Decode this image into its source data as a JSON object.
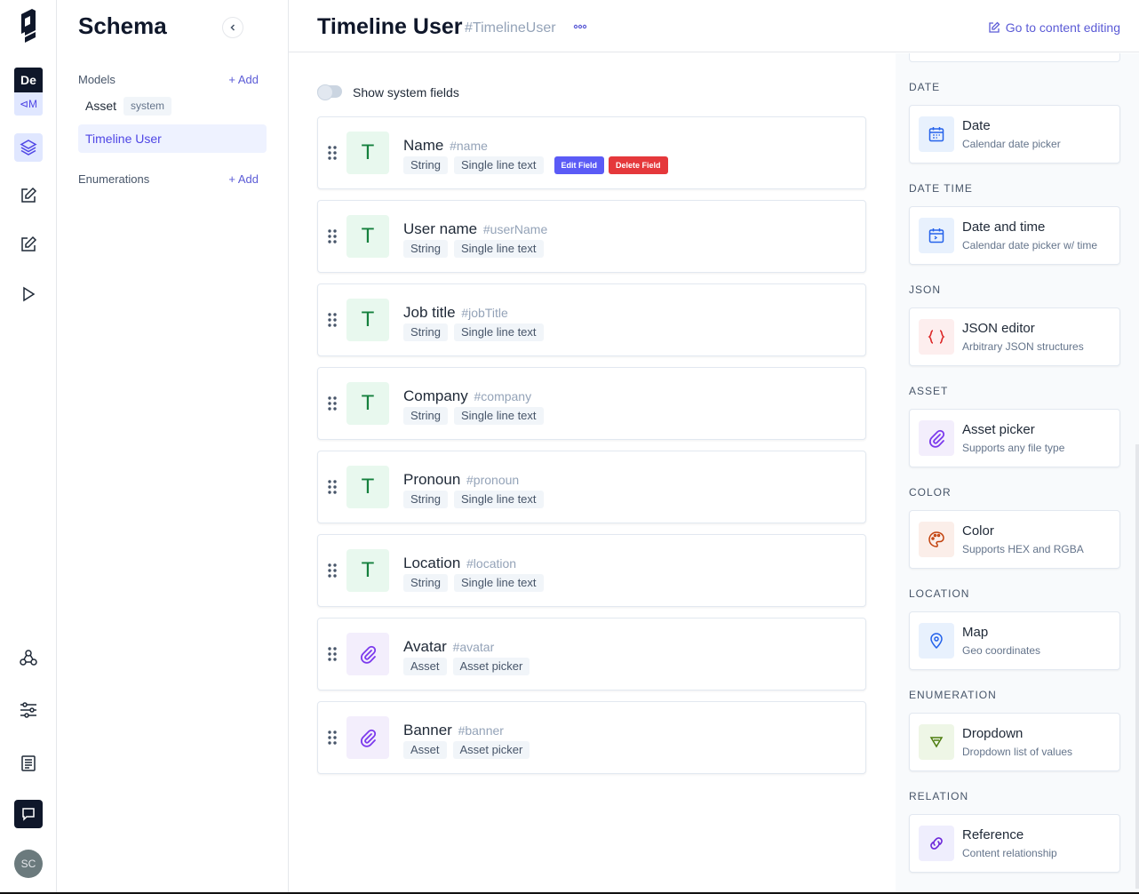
{
  "rail": {
    "project_initials": "De",
    "env_label": "⊲M",
    "user_initials": "SC"
  },
  "schema": {
    "title": "Schema",
    "models_label": "Models",
    "add_label": "+ Add",
    "asset_model": "Asset",
    "system_badge": "system",
    "active_model": "Timeline User",
    "enumerations_label": "Enumerations"
  },
  "header": {
    "title": "Timeline User",
    "api_id": "#TimelineUser",
    "go_to_content": "Go to content editing"
  },
  "main": {
    "toggle_label": "Show system fields",
    "edit_field": "Edit Field",
    "delete_field": "Delete Field",
    "fields": [
      {
        "name": "Name",
        "api_id": "#name",
        "type": "String",
        "component": "Single line text",
        "icon": "text-icon",
        "icon_glyph": "T"
      },
      {
        "name": "User name",
        "api_id": "#userName",
        "type": "String",
        "component": "Single line text",
        "icon": "text-icon",
        "icon_glyph": "T"
      },
      {
        "name": "Job title",
        "api_id": "#jobTitle",
        "type": "String",
        "component": "Single line text",
        "icon": "text-icon",
        "icon_glyph": "T"
      },
      {
        "name": "Company",
        "api_id": "#company",
        "type": "String",
        "component": "Single line text",
        "icon": "text-icon",
        "icon_glyph": "T"
      },
      {
        "name": "Pronoun",
        "api_id": "#pronoun",
        "type": "String",
        "component": "Single line text",
        "icon": "text-icon",
        "icon_glyph": "T"
      },
      {
        "name": "Location",
        "api_id": "#location",
        "type": "String",
        "component": "Single line text",
        "icon": "text-icon",
        "icon_glyph": "T"
      },
      {
        "name": "Avatar",
        "api_id": "#avatar",
        "type": "Asset",
        "component": "Asset picker",
        "icon": "paperclip-icon",
        "icon_glyph": ""
      },
      {
        "name": "Banner",
        "api_id": "#banner",
        "type": "Asset",
        "component": "Asset picker",
        "icon": "paperclip-icon",
        "icon_glyph": ""
      }
    ]
  },
  "field_types": [
    {
      "category": "DATE",
      "name": "Date",
      "desc": "Calendar date picker",
      "icon": "calendar-icon",
      "color": "#2563eb",
      "bg": "#e8f1fd"
    },
    {
      "category": "DATE TIME",
      "name": "Date and time",
      "desc": "Calendar date picker w/ time",
      "icon": "calendar-clock-icon",
      "color": "#2563eb",
      "bg": "#e8f1fd"
    },
    {
      "category": "JSON",
      "name": "JSON editor",
      "desc": "Arbitrary JSON structures",
      "icon": "braces-icon",
      "color": "#dc2626",
      "bg": "#fdeeee"
    },
    {
      "category": "ASSET",
      "name": "Asset picker",
      "desc": "Supports any file type",
      "icon": "paperclip-icon",
      "color": "#7c3aed",
      "bg": "#f3eefc"
    },
    {
      "category": "COLOR",
      "name": "Color",
      "desc": "Supports HEX and RGBA",
      "icon": "palette-icon",
      "color": "#c2410c",
      "bg": "#fbeee9"
    },
    {
      "category": "LOCATION",
      "name": "Map",
      "desc": "Geo coordinates",
      "icon": "map-pin-icon",
      "color": "#2563eb",
      "bg": "#e8f1fd"
    },
    {
      "category": "ENUMERATION",
      "name": "Dropdown",
      "desc": "Dropdown list of values",
      "icon": "dropdown-icon",
      "color": "#4d7c0f",
      "bg": "#eef6e6"
    },
    {
      "category": "RELATION",
      "name": "Reference",
      "desc": "Content relationship",
      "icon": "link-icon",
      "color": "#6d28d9",
      "bg": "#efeefd"
    }
  ]
}
